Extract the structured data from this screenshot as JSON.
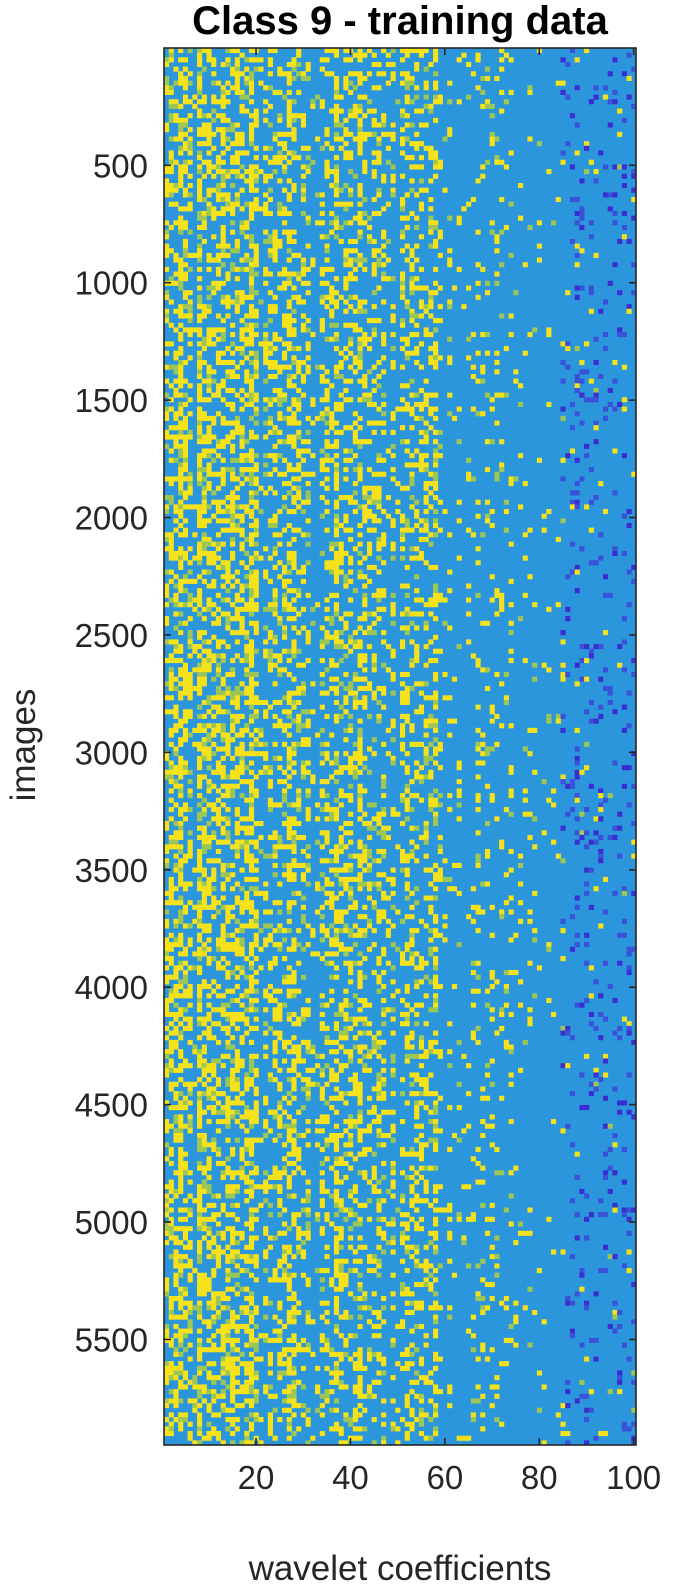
{
  "chart_data": {
    "type": "heatmap",
    "title": "Class 9 - training data",
    "xlabel": "wavelet coefficients",
    "ylabel": "images",
    "x_range": [
      0.5,
      100.5
    ],
    "y_range": [
      0.5,
      5949.5
    ],
    "y_reversed": true,
    "x_ticks": [
      20,
      40,
      60,
      80,
      100
    ],
    "x_tick_labels": [
      "20",
      "40",
      "60",
      "80",
      "100"
    ],
    "y_ticks": [
      500,
      1000,
      1500,
      2000,
      2500,
      3000,
      3500,
      4000,
      4500,
      5000,
      5500
    ],
    "y_tick_labels": [
      "500",
      "1000",
      "1500",
      "2000",
      "2500",
      "3000",
      "3500",
      "4000",
      "4500",
      "5000",
      "5500"
    ],
    "grid": false,
    "colormap": "parula",
    "colors": {
      "background": "#2C96DC",
      "high": "#F6E21A",
      "mid": "#9CC655",
      "low": "#3A52D8",
      "very_low": "#3A2ED0",
      "axis": "#262626"
    }
  }
}
